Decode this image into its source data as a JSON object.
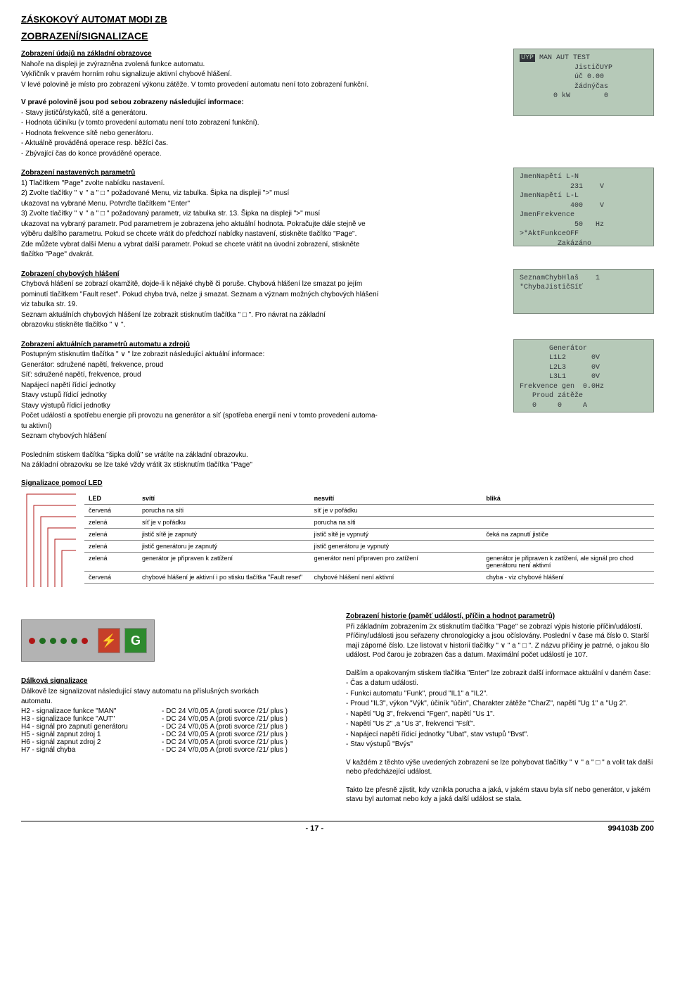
{
  "header": "ZÁSKOKOVÝ AUTOMAT MODI ZB",
  "sectionTitle": "ZOBRAZENÍ/SIGNALIZACE",
  "intro": {
    "heading": "Zobrazení údajů na základní obrazovce",
    "l1": "Nahoře na displeji je zvýrazněna zvolená funkce automatu.",
    "l2": "Vykřičník v pravém horním rohu signalizuje aktivní chybové hlášení.",
    "l3": "V levé polovině je místo pro zobrazení výkonu zátěže. V tomto provedení automatu není toto zobrazení funkční."
  },
  "lcd1": {
    "line1a": "UYP",
    "line1b": " MAN AUT TEST",
    "line2": "             JističUYP",
    "line3": "             úč 0.00",
    "line4": "             žádnýčas",
    "line5": "        0 kW        0"
  },
  "rightInfo": {
    "heading": "V pravé polovině jsou pod sebou zobrazeny následující informace:",
    "i1": "- Stavy jističů/stykačů, sítě a generátoru.",
    "i2": "- Hodnota účiníku (v tomto provedení automatu není toto zobrazení funkční).",
    "i3": "- Hodnota frekvence sítě nebo generátoru.",
    "i4": "- Aktuálně prováděná operace resp. běžící čas.",
    "i5": "- Zbývající čas do konce prováděné operace."
  },
  "paramDisp": {
    "heading": "Zobrazení nastavených parametrů",
    "l1": "1) Tlačítkem \"Page\" zvolte nabídku nastavení.",
    "l2": "2) Zvolte tlačítky \" ∨ \" a \" □ \" požadované Menu, viz tabulka. Šipka na displeji \">\" musí",
    "l3": "    ukazovat na vybrané Menu. Potvrďte tlačítkem \"Enter\"",
    "l4": "3) Zvolte tlačítky \" ∨ \" a \" □ \" požadovaný parametr, viz tabulka str. 13. Šipka na displeji \">\" musí",
    "l5": "    ukazovat na vybraný parametr. Pod parametrem je zobrazena jeho aktuální hodnota. Pokračujte dále stejně ve",
    "l6": "    výběru dalšího parametru. Pokud se chcete vrátit do předchozí nabídky nastavení, stiskněte tlačítko \"Page\".",
    "l7": "    Zde můžete vybrat další Menu a vybrat další parametr. Pokud se chcete vrátit na úvodní zobrazení, stiskněte",
    "l8": "    tlačítko \"Page\" dvakrát."
  },
  "lcd2": {
    "l1": "JmenNapětí L-N",
    "l2": "            231    V",
    "l3": "JmenNapětí L-L",
    "l4": "            400    V",
    "l5": "JmenFrekvence",
    "l6": "             50   Hz",
    "l7": ">*AktFunkceOFF",
    "l8": "         Zakázáno"
  },
  "errDisp": {
    "heading": "Zobrazení chybových hlášení",
    "l1": "Chybová hlášení se zobrazí okamžitě, dojde-li k nějaké chybě či poruše. Chybová hlášení lze smazat po jejím",
    "l2": "pominutí tlačítkem \"Fault reset\". Pokud chyba trvá, nelze ji smazat. Seznam a význam možných chybových hlášení",
    "l3": "viz tabulka str. 19.",
    "l4": "Seznam aktuálních chybových hlášení lze zobrazit stisknutím tlačítka \" □ \". Pro návrat na základní",
    "l5": "obrazovku stiskněte tlačítko \" ∨ \"."
  },
  "lcd3": {
    "l1": "SeznamChybHlaš    1",
    "l2": "*ChybaJističSíť"
  },
  "actualParams": {
    "heading": "Zobrazení aktuálních parametrů automatu a zdrojů",
    "l1": "Postupným stisknutím tlačítka \" ∨ \" lze zobrazit následující aktuální informace:",
    "l2": "Generátor: sdružené napětí, frekvence, proud",
    "l3": "Síť: sdružené napětí, frekvence, proud",
    "l4": "Napájecí napětí řídicí jednotky",
    "l5": "Stavy vstupů řídicí jednotky",
    "l6": "Stavy výstupů řídicí jednotky",
    "l7": "Počet událostí a spotřebu energie při provozu na generátor a síť (spotřeba energií není v tomto provedení automa-",
    "l8": "tu aktivní)",
    "l9": "Seznam chybových hlášení"
  },
  "lcd4": {
    "l1": "       Generátor",
    "l2": "       L1L2      0V",
    "l3": "       L2L3      0V",
    "l4": "       L3L1      0V",
    "l5": "Frekvence gen  0.0Hz",
    "l6": "   Proud zátěže",
    "l7": "   0     0     A"
  },
  "returnInfo": {
    "l1": "Posledním stiskem tlačítka \"šipka dolů\" se vrátíte na základní obrazovku.",
    "l2": "Na základní obrazovku se lze také vždy vrátit 3x stisknutím tlačítka \"Page\""
  },
  "ledHeading": "Signalizace pomocí LED",
  "ledTable": {
    "hdr": {
      "c1": "LED",
      "c2": "svítí",
      "c3": "nesvítí",
      "c4": "bliká"
    },
    "rows": [
      {
        "c1": "červená",
        "c2": "porucha na síti",
        "c3": "síť je v pořádku",
        "c4": ""
      },
      {
        "c1": "zelená",
        "c2": "síť je v pořádku",
        "c3": "porucha na síti",
        "c4": ""
      },
      {
        "c1": "zelená",
        "c2": "jistič sítě je zapnutý",
        "c3": "jistič sítě je vypnutý",
        "c4": "čeká na zapnutí jističe"
      },
      {
        "c1": "zelená",
        "c2": "jistič generátoru je zapnutý",
        "c3": "jistič generátoru je vypnutý",
        "c4": ""
      },
      {
        "c1": "zelená",
        "c2": "generátor je připraven k zatížení",
        "c3": "generátor není připraven pro zatížení",
        "c4": "generátor je připraven k zatížení, ale signál pro chod generátoru není aktivní"
      },
      {
        "c1": "červená",
        "c2": "chybové hlášení je aktivní i po stisku tlačítka \"Fault reset\"",
        "c3": "chybové hlášení není aktivní",
        "c4": "chyba - viz chybové hlášení"
      }
    ]
  },
  "ledPanel": {
    "dotColors": [
      "#b01515",
      "#1f6e1f",
      "#1f6e1f",
      "#1f6e1f",
      "#1f6e1f",
      "#b01515"
    ],
    "sq1Bg": "#c63f2a",
    "sq1Glyph": "⚡",
    "sq2Bg": "#2e8a2e",
    "sq2Glyph": "G"
  },
  "remoteSig": {
    "heading": "Dálková signalizace",
    "intro1": "Dálkově lze signalizovat následující stavy automatu na příslušných svorkách",
    "intro2": "automatu.",
    "rows": [
      {
        "label": "H2 - signalizace funkce \"MAN\"",
        "val": "- DC 24 V/0,05 A  (proti svorce /21/ plus )"
      },
      {
        "label": "H3 - signalizace funkce \"AUT\"",
        "val": "- DC 24 V/0,05 A  (proti svorce /21/ plus )"
      },
      {
        "label": "H4 - signál pro zapnutí generátoru",
        "val": "- DC 24 V/0,05 A  (proti svorce /21/ plus )"
      },
      {
        "label": "H5 - signál zapnut zdroj 1",
        "val": "- DC 24 V/0,05 A  (proti svorce /21/ plus )"
      },
      {
        "label": "H6 - signál zapnut zdroj 2",
        "val": "- DC 24 V/0,05 A  (proti svorce /21/ plus )"
      },
      {
        "label": "H7 - signál chyba",
        "val": "- DC 24 V/0,05 A  (proti svorce /21/ plus )"
      }
    ]
  },
  "history": {
    "heading": "Zobrazení historie (paměť událostí, příčin a hodnot parametrů)",
    "p1": "Při základním zobrazením 2x stisknutím tlačítka \"Page\" se zobrazí výpis historie příčin/událostí. Příčiny/události jsou seřazeny chronologicky a jsou očíslovány. Poslední v čase má číslo 0. Starší mají záporné číslo. Lze listovat v historií tlačítky \" ∨ \" a \" □ \". Z názvu příčiny je patrné, o jakou šlo událost. Pod čarou je zobrazen čas a datum. Maximální počet událostí je 107.",
    "p2": "Dalším a opakovaným stiskem tlačítka \"Enter\" lze zobrazit další informace aktuální v daném čase:",
    "li1": "- Čas a datum události.",
    "li2": "- Funkci automatu \"Funk\", proud \"IL1\"  a  \"IL2\".",
    "li3": "- Proud \"IL3\", výkon \"Výk\", účiník \"účin\", Charakter zátěže \"CharZ\", napětí \"Ug 1\" a \"Ug 2\".",
    "li4": "- Napětí \"Ug 3\", frekvenci \"Fgen\", napětí \"Us 1\".",
    "li5": "- Napětí \"Us 2\" ,a \"Us 3\", frekvenci \"Fsíť\".",
    "li6": "- Napájecí napětí řídicí jednotky \"Ubat\", stav vstupů \"Bvst\".",
    "li7": "- Stav výstupů \"Bvýs\"",
    "p3": "V každém z těchto výše uvedených zobrazení se lze pohybovat tlačítky \" ∨ \" a \" □ \" a volit tak další nebo předcházející událost.",
    "p4": "Takto lze přesně zjistit, kdy vznikla porucha a jaká, v jakém stavu byla síť nebo generátor, v jakém stavu byl automat nebo kdy a jaká další událost se stala."
  },
  "footer": {
    "page": "- 17 -",
    "doc": "994103b Z00"
  }
}
